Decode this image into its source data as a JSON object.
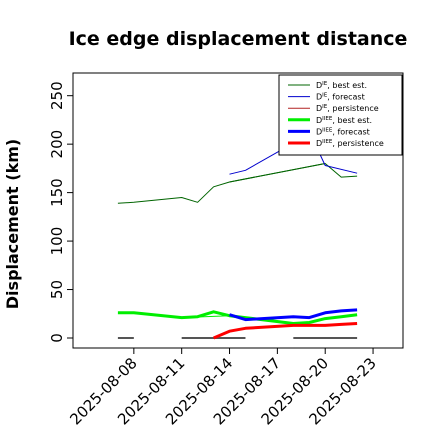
{
  "chart_data": {
    "type": "line",
    "title": "Ice edge displacement distance",
    "xlabel": "",
    "ylabel": "Displacement (km)",
    "xlim": [
      "2025-08-05",
      "2025-08-24"
    ],
    "ylim": [
      0,
      260
    ],
    "y_ticks": [
      0,
      50,
      100,
      150,
      200,
      250
    ],
    "x_ticks": [
      "2025-08-08",
      "2025-08-11",
      "2025-08-14",
      "2025-08-17",
      "2025-08-20",
      "2025-08-23"
    ],
    "highlight_tick": "2025-08-14",
    "highlight_color": "#228b22",
    "grid": false,
    "legend_position": "top-right",
    "series": [
      {
        "name": "D^IE, best est.",
        "color": "#006400",
        "width": 1,
        "x": [
          "2025-08-07",
          "2025-08-08",
          "2025-08-11",
          "2025-08-12",
          "2025-08-13",
          "2025-08-14",
          "2025-08-20",
          "2025-08-21",
          "2025-08-22"
        ],
        "y": [
          139,
          140,
          145,
          140,
          156,
          161,
          180,
          166,
          167
        ]
      },
      {
        "name": "D^IE, forecast",
        "color": "#0000cd",
        "width": 1,
        "x": [
          "2025-08-14",
          "2025-08-15",
          "2025-08-18",
          "2025-08-19",
          "2025-08-20",
          "2025-08-22"
        ],
        "y": [
          169,
          173,
          201,
          213,
          178,
          170
        ]
      },
      {
        "name": "D^IE, persistence",
        "color": "#b22222",
        "width": 1,
        "x": [],
        "y": []
      },
      {
        "name": "D^IIEE, best est.",
        "color": "#00ee00",
        "width": 3,
        "x": [
          "2025-08-07",
          "2025-08-08",
          "2025-08-11",
          "2025-08-12",
          "2025-08-13",
          "2025-08-14",
          "2025-08-18",
          "2025-08-19",
          "2025-08-20",
          "2025-08-21",
          "2025-08-22"
        ],
        "y": [
          26,
          26,
          21,
          22,
          27,
          23,
          15,
          16,
          20,
          22,
          24
        ]
      },
      {
        "name": "D^IIEE, forecast",
        "color": "#0000ff",
        "width": 3,
        "x": [
          "2025-08-14",
          "2025-08-15",
          "2025-08-18",
          "2025-08-19",
          "2025-08-20",
          "2025-08-21",
          "2025-08-22"
        ],
        "y": [
          24,
          19,
          22,
          21,
          26,
          28,
          29
        ]
      },
      {
        "name": "D^IIEE, persistence",
        "color": "#ff0000",
        "width": 3,
        "x": [
          "2025-08-13",
          "2025-08-14",
          "2025-08-15",
          "2025-08-18",
          "2025-08-19",
          "2025-08-20",
          "2025-08-21",
          "2025-08-22"
        ],
        "y": [
          0,
          7,
          10,
          13,
          13,
          13,
          14,
          15
        ]
      }
    ],
    "connectors": [
      {
        "color": "#00ee00",
        "width": 1,
        "x": [
          "2025-08-08",
          "2025-08-11",
          "2025-08-14",
          "2025-08-18"
        ],
        "y": [
          26,
          21,
          23,
          15
        ]
      },
      {
        "color": "#0000cd",
        "width": 1,
        "x": [
          "2025-08-15",
          "2025-08-18"
        ],
        "y": [
          19,
          22
        ]
      },
      {
        "color": "#006400",
        "width": 1,
        "x": [
          "2025-08-14",
          "2025-08-20"
        ],
        "y": [
          161,
          180
        ]
      },
      {
        "color": "#b22222",
        "width": 1,
        "x": [
          "2025-08-15",
          "2025-08-18"
        ],
        "y": [
          10,
          13
        ]
      }
    ],
    "zero_baseline_segments": [
      {
        "x": [
          "2025-08-07",
          "2025-08-08"
        ]
      },
      {
        "x": [
          "2025-08-11",
          "2025-08-15"
        ]
      },
      {
        "x": [
          "2025-08-18",
          "2025-08-22"
        ]
      }
    ]
  },
  "legend": [
    {
      "base": "D",
      "sup": "IE",
      "rest": ", best est.",
      "color": "#006400",
      "width": 1
    },
    {
      "base": "D",
      "sup": "IE",
      "rest": ", forecast",
      "color": "#0000cd",
      "width": 1
    },
    {
      "base": "D",
      "sup": "IE",
      "rest": ", persistence",
      "color": "#b22222",
      "width": 1
    },
    {
      "base": "D",
      "sup": "IIEE",
      "rest": ", best est.",
      "color": "#00ee00",
      "width": 3
    },
    {
      "base": "D",
      "sup": "IIEE",
      "rest": ", forecast",
      "color": "#0000ff",
      "width": 3
    },
    {
      "base": "D",
      "sup": "IIEE",
      "rest": ", persistence",
      "color": "#ff0000",
      "width": 3
    }
  ]
}
